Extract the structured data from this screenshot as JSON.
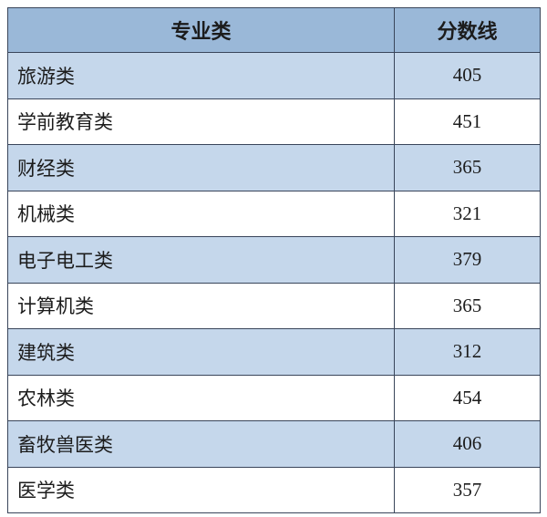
{
  "page": {
    "background": "#ffffff"
  },
  "colors": {
    "header_bg": "#9ab8d8",
    "alt_row_bg": "#c5d7eb",
    "row_bg": "#ffffff",
    "border": "#39455a",
    "text": "#1c1c1c"
  },
  "table": {
    "columns": [
      {
        "label": "专业类"
      },
      {
        "label": "分数线"
      }
    ],
    "rows": [
      {
        "category": "旅游类",
        "score": "405"
      },
      {
        "category": "学前教育类",
        "score": "451"
      },
      {
        "category": "财经类",
        "score": "365"
      },
      {
        "category": "机械类",
        "score": "321"
      },
      {
        "category": "电子电工类",
        "score": "379"
      },
      {
        "category": "计算机类",
        "score": "365"
      },
      {
        "category": "建筑类",
        "score": "312"
      },
      {
        "category": "农林类",
        "score": "454"
      },
      {
        "category": "畜牧兽医类",
        "score": "406"
      },
      {
        "category": "医学类",
        "score": "357"
      }
    ]
  },
  "chart_data": {
    "type": "table",
    "columns": [
      "专业类",
      "分数线"
    ],
    "rows": [
      [
        "旅游类",
        405
      ],
      [
        "学前教育类",
        451
      ],
      [
        "财经类",
        365
      ],
      [
        "机械类",
        321
      ],
      [
        "电子电工类",
        379
      ],
      [
        "计算机类",
        365
      ],
      [
        "建筑类",
        312
      ],
      [
        "农林类",
        454
      ],
      [
        "畜牧兽医类",
        406
      ],
      [
        "医学类",
        357
      ]
    ],
    "title": "",
    "layout_hints": {
      "header_background": "#9ab8d8",
      "zebra_striping": true,
      "first_data_row_background": "#c5d7eb"
    }
  }
}
